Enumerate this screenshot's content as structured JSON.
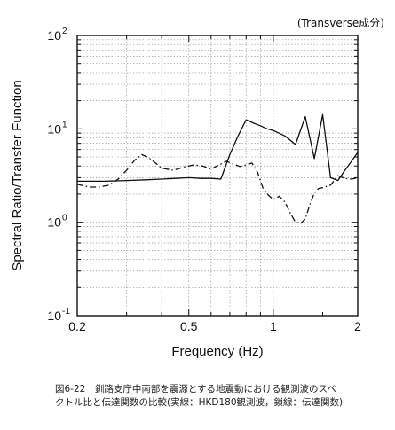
{
  "chart_data": {
    "type": "line",
    "title": "",
    "note": "(Transverse成分)",
    "xlabel": "Frequency (Hz)",
    "ylabel": "Spectral Ratio/Transfer Function",
    "xscale": "log",
    "yscale": "log",
    "xlim": [
      0.2,
      2
    ],
    "ylim": [
      0.1,
      100
    ],
    "grid": true,
    "x_ticks": [
      {
        "value": 0.2,
        "label": "0.2"
      },
      {
        "value": 0.5,
        "label": "0.5"
      },
      {
        "value": 1,
        "label": "1"
      },
      {
        "value": 2,
        "label": "2"
      }
    ],
    "y_ticks": [
      {
        "value": 0.1,
        "base": "10",
        "exp": "-1"
      },
      {
        "value": 1,
        "base": "10",
        "exp": "0"
      },
      {
        "value": 10,
        "base": "10",
        "exp": "1"
      },
      {
        "value": 100,
        "base": "10",
        "exp": "2"
      }
    ],
    "series": [
      {
        "style": "solid",
        "x": [
          0.2,
          0.25,
          0.3,
          0.35,
          0.4,
          0.45,
          0.5,
          0.55,
          0.6,
          0.65,
          0.7,
          0.75,
          0.8,
          0.85,
          0.9,
          0.95,
          1.0,
          1.1,
          1.2,
          1.3,
          1.4,
          1.5,
          1.6,
          1.7,
          1.8,
          1.9,
          2.0
        ],
        "y": [
          2.75,
          2.75,
          2.8,
          2.85,
          2.9,
          2.95,
          3.0,
          2.95,
          2.95,
          2.9,
          5.3,
          8.5,
          12.5,
          11.5,
          10.8,
          10.0,
          9.6,
          8.4,
          6.8,
          13.5,
          4.8,
          14.2,
          3.0,
          2.8,
          3.6,
          4.5,
          5.6
        ]
      },
      {
        "style": "dash-dot",
        "x": [
          0.2,
          0.22,
          0.24,
          0.26,
          0.28,
          0.3,
          0.32,
          0.34,
          0.36,
          0.38,
          0.4,
          0.44,
          0.48,
          0.52,
          0.56,
          0.6,
          0.64,
          0.68,
          0.72,
          0.76,
          0.8,
          0.84,
          0.88,
          0.92,
          0.96,
          1.0,
          1.05,
          1.1,
          1.15,
          1.2,
          1.25,
          1.3,
          1.35,
          1.4,
          1.45,
          1.5,
          1.6,
          1.7,
          1.8,
          1.9,
          2.0
        ],
        "y": [
          2.55,
          2.38,
          2.38,
          2.5,
          2.9,
          3.6,
          4.6,
          5.3,
          4.9,
          4.3,
          3.8,
          3.6,
          3.9,
          4.1,
          4.0,
          3.7,
          4.1,
          4.5,
          4.2,
          3.95,
          4.1,
          4.3,
          3.4,
          2.3,
          1.95,
          1.75,
          1.9,
          1.65,
          1.25,
          1.0,
          0.97,
          1.08,
          1.55,
          2.05,
          2.3,
          2.35,
          2.5,
          3.15,
          2.95,
          2.9,
          3.0
        ]
      }
    ]
  },
  "caption": {
    "line1": "図6-22　釧路支庁中南部を震源とする地震動における観測波のスペ",
    "line2": "クトル比と伝達関数の比較(実線：HKD180観測波，鎖線：伝達関数)"
  }
}
